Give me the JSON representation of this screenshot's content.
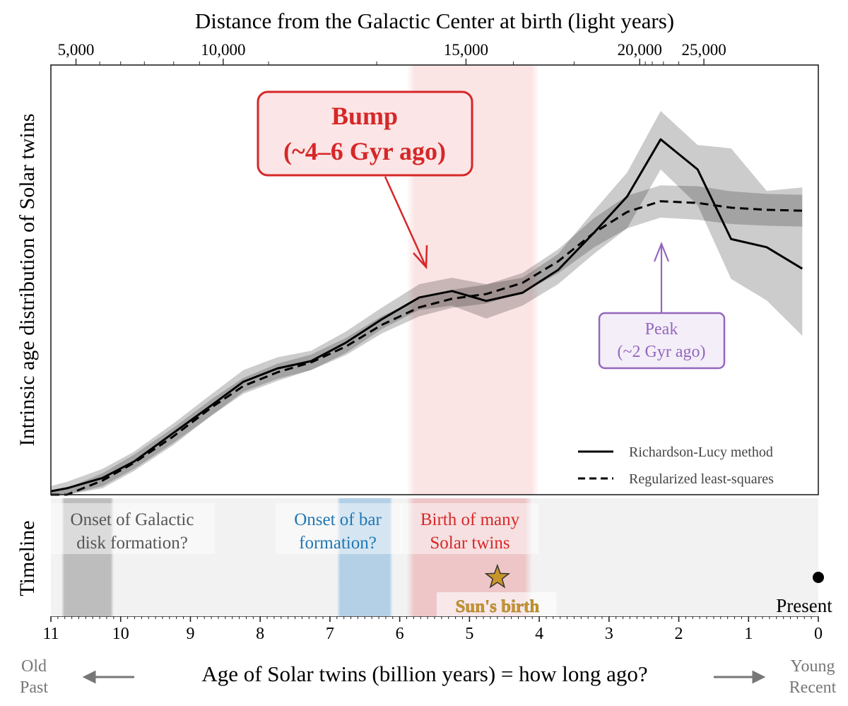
{
  "chart_data": {
    "type": "line",
    "title": "",
    "xlabel": "Age of Solar twins  (billion years)  =  how long ago?",
    "ylabel": "Intrinsic age distribution of Solar twins",
    "top_xlabel": "Distance from the Galactic Center at birth  (light years)",
    "xlim": [
      11,
      0
    ],
    "x_reversed": true,
    "ylim": [
      0,
      1
    ],
    "y_units": "relative (no tick labels)",
    "grid": false,
    "x_ticks": [
      "11",
      "10",
      "9",
      "8",
      "7",
      "6",
      "5",
      "4",
      "3",
      "2",
      "1",
      "0"
    ],
    "top_ticks": [
      {
        "label": "5,000",
        "age": 10.64
      },
      {
        "label": "10,000",
        "age": 8.53
      },
      {
        "label": "15,000",
        "age": 5.05
      },
      {
        "label": "20,000",
        "age": 2.56
      },
      {
        "label": "25,000",
        "age": 1.64
      }
    ],
    "x_left_labels": [
      "Old",
      "Past"
    ],
    "x_right_labels": [
      "Young",
      "Recent"
    ],
    "legend_placement": "lower-right",
    "series": [
      {
        "name": "Richardson-Lucy method",
        "style": "solid",
        "x": [
          11.0,
          10.77,
          10.26,
          9.81,
          9.25,
          8.69,
          8.24,
          7.75,
          7.27,
          6.77,
          6.26,
          5.72,
          5.25,
          4.76,
          4.24,
          3.73,
          3.22,
          2.74,
          2.26,
          1.73,
          1.25,
          0.74,
          0.23
        ],
        "y": [
          0.008,
          0.015,
          0.039,
          0.077,
          0.143,
          0.209,
          0.263,
          0.294,
          0.311,
          0.354,
          0.408,
          0.459,
          0.474,
          0.451,
          0.47,
          0.523,
          0.609,
          0.694,
          0.827,
          0.757,
          0.595,
          0.576,
          0.526
        ],
        "lower": [
          0.0,
          0.0,
          0.02,
          0.06,
          0.12,
          0.185,
          0.24,
          0.27,
          0.29,
          0.33,
          0.385,
          0.43,
          0.44,
          0.41,
          0.44,
          0.49,
          0.56,
          0.62,
          0.757,
          0.674,
          0.502,
          0.452,
          0.37
        ],
        "upper": [
          0.02,
          0.03,
          0.06,
          0.1,
          0.165,
          0.235,
          0.29,
          0.32,
          0.335,
          0.38,
          0.435,
          0.49,
          0.505,
          0.49,
          0.505,
          0.56,
          0.66,
          0.75,
          0.893,
          0.814,
          0.806,
          0.707,
          0.715
        ]
      },
      {
        "name": "Regularized least-squares",
        "style": "dashed",
        "x": [
          11.0,
          10.77,
          10.26,
          9.81,
          9.25,
          8.69,
          8.24,
          7.75,
          7.27,
          6.77,
          6.26,
          5.72,
          5.25,
          4.76,
          4.24,
          3.73,
          3.22,
          2.74,
          2.26,
          1.73,
          1.25,
          0.74,
          0.23
        ],
        "y": [
          0.0,
          0.0,
          0.033,
          0.074,
          0.135,
          0.204,
          0.253,
          0.285,
          0.308,
          0.345,
          0.395,
          0.436,
          0.456,
          0.467,
          0.493,
          0.543,
          0.609,
          0.658,
          0.683,
          0.679,
          0.668,
          0.663,
          0.661
        ],
        "lower": [
          0.0,
          0.0,
          0.015,
          0.055,
          0.115,
          0.185,
          0.235,
          0.265,
          0.29,
          0.325,
          0.375,
          0.415,
          0.435,
          0.445,
          0.47,
          0.515,
          0.575,
          0.62,
          0.645,
          0.64,
          0.63,
          0.626,
          0.624
        ],
        "upper": [
          0.01,
          0.015,
          0.05,
          0.093,
          0.155,
          0.223,
          0.272,
          0.305,
          0.326,
          0.365,
          0.415,
          0.457,
          0.477,
          0.489,
          0.516,
          0.571,
          0.643,
          0.696,
          0.72,
          0.718,
          0.706,
          0.7,
          0.698
        ]
      }
    ],
    "annotations": {
      "bump": {
        "lines": [
          "Bump",
          "(~4–6 Gyr ago)"
        ],
        "color": "#d62728",
        "points_to_age": 5.6
      },
      "peak": {
        "lines": [
          "Peak",
          "(~2 Gyr ago)"
        ],
        "color": "#9467bd",
        "points_to_age": 2.25
      },
      "bump_band": {
        "from": 5.9,
        "to": 4.0,
        "color": "#fbe4e4"
      }
    },
    "timeline": {
      "label": "Timeline",
      "events": [
        {
          "lines": [
            "Onset of Galactic",
            "disk formation?"
          ],
          "from": 10.85,
          "to": 10.1,
          "color": "#555555",
          "band": "#bdbdbd"
        },
        {
          "lines": [
            "Onset of bar",
            "formation?"
          ],
          "from": 6.9,
          "to": 6.1,
          "color": "#1f77b4",
          "band": "#b3d0e6"
        },
        {
          "lines": [
            "Birth of many",
            "Solar twins"
          ],
          "from": 5.9,
          "to": 4.1,
          "color": "#d62728",
          "band": "#eec6c8"
        }
      ],
      "sun_birth": {
        "label": "Sun's birth",
        "age": 4.6,
        "color": "#c8952a"
      },
      "present": {
        "label": "Present",
        "age": 0
      }
    }
  }
}
